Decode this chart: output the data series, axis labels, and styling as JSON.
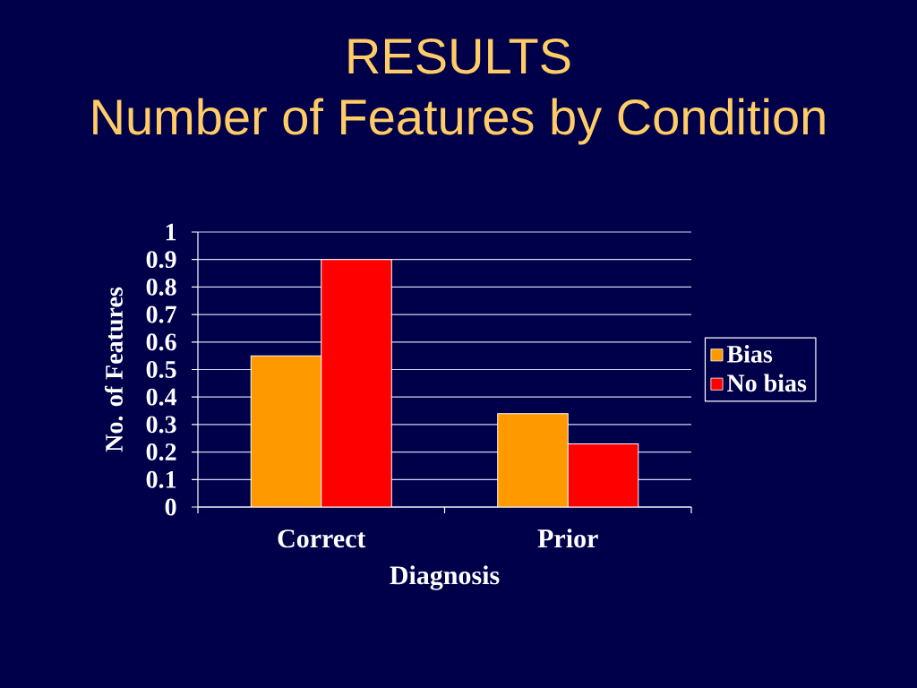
{
  "chart_data": {
    "type": "bar",
    "title": "RESULTS",
    "subtitle": "Number of Features by Condition",
    "xlabel": "Diagnosis",
    "ylabel": "No. of Features",
    "categories": [
      "Correct",
      "Prior"
    ],
    "series": [
      {
        "name": "Bias",
        "color": "#ff9900",
        "values": [
          0.55,
          0.34
        ]
      },
      {
        "name": "No bias",
        "color": "#ff0000",
        "values": [
          0.9,
          0.23
        ]
      }
    ],
    "ylim": [
      0,
      1
    ],
    "yticks": [
      0,
      0.1,
      0.2,
      0.3,
      0.4,
      0.5,
      0.6,
      0.7,
      0.8,
      0.9,
      1
    ],
    "grid": "y",
    "legend": "right"
  }
}
